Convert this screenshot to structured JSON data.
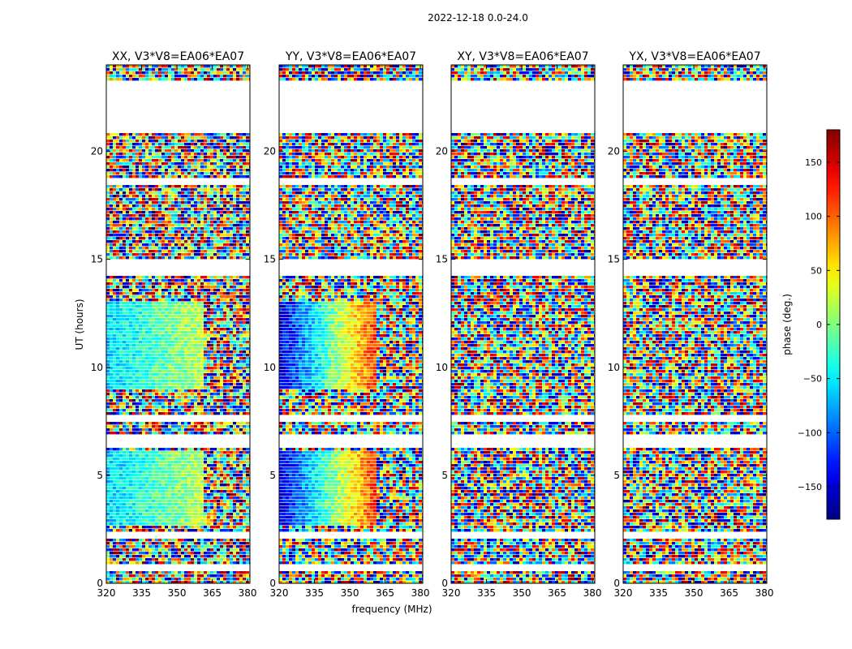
{
  "figure_title": "2022-12-18 0.0-24.0",
  "chart_data": {
    "type": "heatmap",
    "title": "2022-12-18 0.0-24.0",
    "xlabel": "frequency (MHz)",
    "ylabel": "UT (hours)",
    "xlim": [
      320,
      381
    ],
    "ylim": [
      0,
      24
    ],
    "xticks": [
      320,
      335,
      350,
      365,
      380
    ],
    "yticks": [
      0,
      5,
      10,
      15,
      20
    ],
    "panels": [
      {
        "id": "xx",
        "title": "XX, V3*V8=EA06*EA07",
        "trend": [
          -60,
          20
        ],
        "coherent": true
      },
      {
        "id": "yy",
        "title": "YY, V3*V8=EA06*EA07",
        "trend": [
          -150,
          120
        ],
        "coherent": true
      },
      {
        "id": "xy",
        "title": "XY, V3*V8=EA06*EA07",
        "trend": [
          0,
          0
        ],
        "coherent": false
      },
      {
        "id": "yx",
        "title": "YX, V3*V8=EA06*EA07",
        "trend": [
          0,
          0
        ],
        "coherent": false
      }
    ],
    "coherent_time_ranges": [
      [
        2.7,
        6.1
      ],
      [
        9.0,
        13.0
      ]
    ],
    "flagged_time_ranges": [
      [
        20.8,
        23.3
      ],
      [
        14.2,
        15.0
      ],
      [
        7.4,
        7.7
      ],
      [
        6.2,
        6.8
      ],
      [
        2.1,
        2.4
      ],
      [
        18.5,
        18.8
      ],
      [
        0.6,
        0.8
      ]
    ],
    "colorbar": {
      "label": "phase (deg.)",
      "range": [
        -180,
        180
      ],
      "ticks": [
        150,
        100,
        50,
        0,
        -50,
        -100,
        -150
      ],
      "tick_labels": [
        "150",
        "100",
        "50",
        "0",
        "−50",
        "−100",
        "−150"
      ],
      "colormap": "jet"
    }
  }
}
